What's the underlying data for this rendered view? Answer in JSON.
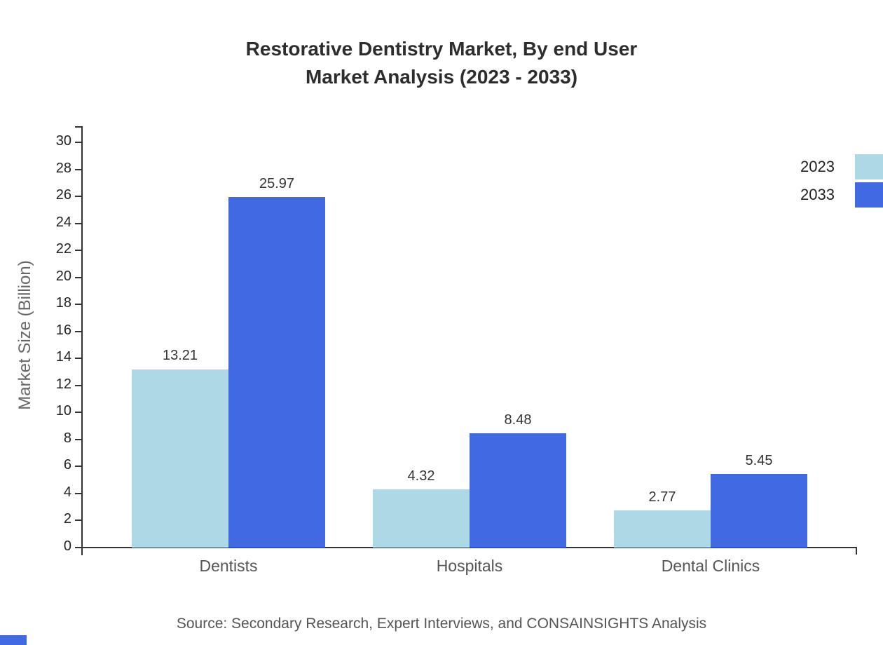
{
  "title": "Restorative Dentistry Market, By end User\nMarket Analysis (2023 - 2033)",
  "source": "Source: Secondary Research, Expert Interviews, and CONSAINSIGHTS Analysis",
  "colors": {
    "series_2023": "#add8e6",
    "series_2033": "#4169e1",
    "axis": "#333333",
    "accent": "#4169e1"
  },
  "chart_data": {
    "type": "bar",
    "title": "Restorative Dentistry Market, By end User\nMarket Analysis (2023 - 2033)",
    "categories": [
      "Dentists",
      "Hospitals",
      "Dental Clinics"
    ],
    "series": [
      {
        "name": "2023",
        "color": "#add8e6",
        "values": [
          13.21,
          4.32,
          2.77
        ]
      },
      {
        "name": "2033",
        "color": "#4169e1",
        "values": [
          25.97,
          8.48,
          5.45
        ]
      }
    ],
    "xlabel": "",
    "ylabel": "Market Size (Billion)",
    "ylim": [
      0,
      30
    ],
    "ytick_step": 2,
    "grid": false,
    "legend_position": "top-right",
    "value_labels": true
  }
}
